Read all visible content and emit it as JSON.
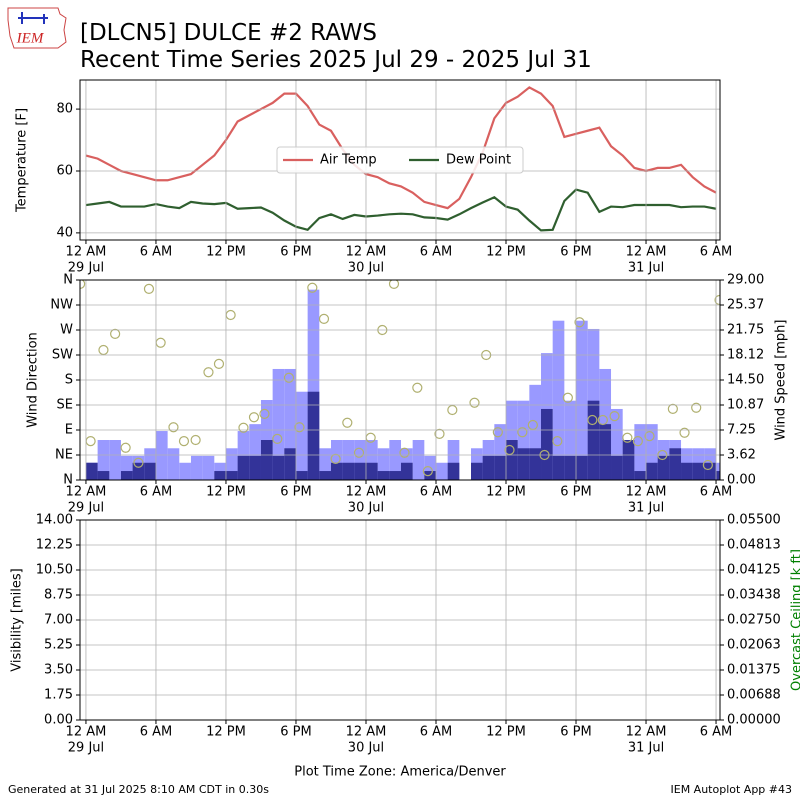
{
  "title": [
    "[DLCN5] DULCE #2 RAWS",
    "Recent Time Series 2025 Jul 29 - 2025 Jul 31"
  ],
  "logo": "IEM",
  "footer_left": "Generated at 31 Jul 2025 8:10 AM CDT in 0.30s",
  "footer_right": "IEM Autoplot App #43",
  "chart_data": [
    {
      "type": "line",
      "ylabel": "Temperature [F]",
      "grid": true,
      "legend": "center",
      "xlim": [
        -0.51,
        54.34
      ],
      "xticks": [
        {
          "value": 0,
          "label": "12 AM"
        },
        {
          "value": 6,
          "label": "6 AM"
        },
        {
          "value": 12,
          "label": "12 PM"
        },
        {
          "value": 18,
          "label": "6 PM"
        },
        {
          "value": 24,
          "label": "12 AM"
        },
        {
          "value": 30,
          "label": "6 AM"
        },
        {
          "value": 36,
          "label": "12 PM"
        },
        {
          "value": 42,
          "label": "6 PM"
        },
        {
          "value": 48,
          "label": "12 AM"
        },
        {
          "value": 54,
          "label": "6 AM"
        }
      ],
      "xdates": [
        {
          "value": 0,
          "label": "29 Jul"
        },
        {
          "value": 24,
          "label": "30 Jul"
        },
        {
          "value": 48,
          "label": "31 Jul"
        }
      ],
      "ylim": [
        37.7,
        89.4
      ],
      "yticks": [
        40,
        60,
        80
      ],
      "x": [
        0,
        1,
        2,
        3,
        4,
        5,
        6,
        7,
        8,
        9,
        10,
        11,
        12,
        13,
        14,
        15,
        16,
        17,
        18,
        19,
        20,
        21,
        22,
        23,
        24,
        25,
        26,
        27,
        28,
        29,
        30,
        31,
        32,
        33,
        34,
        35,
        36,
        37,
        38,
        39,
        40,
        41,
        42,
        43,
        44,
        45,
        46,
        47,
        48,
        49,
        50,
        51,
        52,
        53,
        54
      ],
      "series": [
        {
          "name": "Air Temp",
          "color": "#d9605f",
          "values": [
            65,
            64,
            62,
            60,
            59,
            58,
            57,
            57,
            58,
            59,
            62,
            65,
            70,
            76,
            78,
            80,
            82,
            85,
            85,
            81,
            75,
            73,
            67,
            62,
            59,
            58,
            56,
            55,
            53,
            50,
            49,
            48,
            51,
            58,
            66,
            77,
            82,
            84,
            87,
            85,
            81,
            71,
            72,
            73,
            74,
            68,
            65,
            61,
            60,
            61,
            61,
            62,
            58,
            55,
            53
          ]
        },
        {
          "name": "Dew Point",
          "color": "#2f5f2f",
          "values": [
            49,
            49.5,
            50,
            48.5,
            48.5,
            48.5,
            49.3,
            48.5,
            48,
            50,
            49.5,
            49.3,
            49.7,
            47.8,
            48,
            48.2,
            46.5,
            44,
            42,
            41,
            44.8,
            46,
            44.5,
            45.8,
            45.3,
            45.6,
            46,
            46.2,
            46,
            45,
            44.8,
            44.3,
            46,
            48,
            49.8,
            51.5,
            48.5,
            47.5,
            44,
            40.8,
            41,
            50.3,
            54,
            53,
            46.8,
            48.5,
            48.3,
            49,
            49,
            49,
            49,
            48.3,
            48.5,
            48.5,
            47.8
          ]
        }
      ]
    },
    {
      "type": "bar",
      "ylabel": "Wind Direction",
      "y2label": "Wind Speed [mph]",
      "grid": true,
      "xlim": [
        -0.51,
        54.34
      ],
      "xticks": [
        {
          "value": 0,
          "label": "12 AM"
        },
        {
          "value": 6,
          "label": "6 AM"
        },
        {
          "value": 12,
          "label": "12 PM"
        },
        {
          "value": 18,
          "label": "6 PM"
        },
        {
          "value": 24,
          "label": "12 AM"
        },
        {
          "value": 30,
          "label": "6 AM"
        },
        {
          "value": 36,
          "label": "12 PM"
        },
        {
          "value": 42,
          "label": "6 PM"
        },
        {
          "value": 48,
          "label": "12 AM"
        },
        {
          "value": 54,
          "label": "6 AM"
        }
      ],
      "xdates": [
        {
          "value": 0,
          "label": "29 Jul"
        },
        {
          "value": 24,
          "label": "30 Jul"
        },
        {
          "value": 48,
          "label": "31 Jul"
        }
      ],
      "ylim": [
        0,
        360
      ],
      "yticks": [
        {
          "value": 0,
          "label": "N"
        },
        {
          "value": 45,
          "label": "NE"
        },
        {
          "value": 90,
          "label": "E"
        },
        {
          "value": 135,
          "label": "SE"
        },
        {
          "value": 180,
          "label": "S"
        },
        {
          "value": 225,
          "label": "SW"
        },
        {
          "value": 270,
          "label": "W"
        },
        {
          "value": 315,
          "label": "NW"
        },
        {
          "value": 360,
          "label": "N"
        }
      ],
      "y2lim": [
        0,
        29
      ],
      "y2ticks": [
        {
          "value": 0,
          "label": "0.00"
        },
        {
          "value": 3.625,
          "label": "3.62"
        },
        {
          "value": 7.25,
          "label": "7.25"
        },
        {
          "value": 10.875,
          "label": "10.87"
        },
        {
          "value": 14.5,
          "label": "14.50"
        },
        {
          "value": 18.125,
          "label": "18.12"
        },
        {
          "value": 21.75,
          "label": "21.75"
        },
        {
          "value": 25.375,
          "label": "25.37"
        },
        {
          "value": 29,
          "label": "29.00"
        }
      ],
      "x": [
        0,
        1,
        2,
        3,
        4,
        5,
        6,
        7,
        8,
        9,
        10,
        11,
        12,
        13,
        14,
        15,
        16,
        17,
        18,
        19,
        20,
        21,
        22,
        23,
        24,
        25,
        26,
        27,
        28,
        29,
        30,
        31,
        32,
        33,
        34,
        35,
        36,
        37,
        38,
        39,
        40,
        41,
        42,
        43,
        44,
        45,
        46,
        47,
        48,
        49,
        50,
        51,
        52,
        53,
        54
      ],
      "series": [
        {
          "color": "#9999ff",
          "axis": "y2",
          "values": [
            2.5,
            5.8,
            5.8,
            3.5,
            3.5,
            4.6,
            7.1,
            4.6,
            2.5,
            3.5,
            3.5,
            2.5,
            4.6,
            7.1,
            8.1,
            11.6,
            16.1,
            16.1,
            12.8,
            27.6,
            4.6,
            5.8,
            5.8,
            5.8,
            5.8,
            4.6,
            5.8,
            4.6,
            5.8,
            3.5,
            2.5,
            5.8,
            0,
            4.6,
            5.8,
            8.1,
            11.5,
            11.5,
            13.8,
            18.4,
            23.1,
            11.5,
            23.1,
            21.9,
            16.1,
            10.3,
            5.8,
            8.1,
            8.1,
            5.8,
            5.8,
            4.6,
            4.6,
            4.6,
            2.5
          ]
        },
        {
          "color": "#333399",
          "axis": "y2",
          "values": [
            2.5,
            1.3,
            0,
            1.3,
            2.5,
            2.5,
            0,
            0,
            0,
            0,
            0,
            1.3,
            1.3,
            3.5,
            3.5,
            5.8,
            3.5,
            4.6,
            1.3,
            12.8,
            1.3,
            2.5,
            2.5,
            2.5,
            2.5,
            1.3,
            1.3,
            2.5,
            0,
            1.3,
            0,
            2.5,
            0,
            2.5,
            3.5,
            3.5,
            5.8,
            4.6,
            4.6,
            10.3,
            3.5,
            3.5,
            3.5,
            11.5,
            8.1,
            3.5,
            5.8,
            1.3,
            2.5,
            3.5,
            4.6,
            2.5,
            2.5,
            2.5,
            1.3
          ]
        }
      ],
      "scatter": {
        "color": "#b0b070",
        "x": [
          -0.5,
          0.4,
          1.5,
          2.5,
          3.4,
          4.5,
          5.4,
          6.4,
          7.5,
          8.4,
          9.4,
          10.5,
          11.4,
          12.4,
          13.5,
          14.4,
          15.3,
          16.4,
          17.4,
          18.3,
          19.4,
          20.4,
          21.4,
          22.4,
          23.4,
          24.4,
          25.4,
          26.4,
          27.3,
          28.4,
          29.3,
          30.3,
          31.4,
          33.3,
          34.3,
          35.3,
          36.3,
          37.4,
          38.3,
          39.3,
          40.4,
          41.3,
          42.3,
          43.4,
          44.3,
          45.3,
          46.4,
          47.3,
          48.3,
          49.4,
          50.3,
          51.3,
          52.3,
          53.3,
          54.3
        ],
        "values": [
          353,
          70,
          234,
          263,
          58,
          31,
          344,
          247,
          95,
          70,
          72,
          194,
          209,
          297,
          94,
          113,
          119,
          74,
          184,
          95,
          346,
          290,
          38,
          103,
          49,
          76,
          270,
          353,
          49,
          166,
          16,
          83,
          126,
          139,
          225,
          86,
          54,
          86,
          99,
          45,
          70,
          148,
          284,
          108,
          108,
          115,
          76,
          70,
          79,
          45,
          128,
          85,
          130,
          27,
          324
        ]
      }
    },
    {
      "type": "line",
      "ylabel": "Visibility [miles]",
      "y2label": "Overcast Ceiling [k ft]",
      "y2label_color": "#008000",
      "xlabel": "Plot Time Zone: America/Denver",
      "grid": true,
      "xlim": [
        -0.51,
        54.34
      ],
      "xticks": [
        {
          "value": 0,
          "label": "12 AM"
        },
        {
          "value": 6,
          "label": "6 AM"
        },
        {
          "value": 12,
          "label": "12 PM"
        },
        {
          "value": 18,
          "label": "6 PM"
        },
        {
          "value": 24,
          "label": "12 AM"
        },
        {
          "value": 30,
          "label": "6 AM"
        },
        {
          "value": 36,
          "label": "12 PM"
        },
        {
          "value": 42,
          "label": "6 PM"
        },
        {
          "value": 48,
          "label": "12 AM"
        },
        {
          "value": 54,
          "label": "6 AM"
        }
      ],
      "xdates": [
        {
          "value": 0,
          "label": "29 Jul"
        },
        {
          "value": 24,
          "label": "30 Jul"
        },
        {
          "value": 48,
          "label": "31 Jul"
        }
      ],
      "ylim": [
        0,
        14
      ],
      "yticks": [
        {
          "value": 0,
          "label": "0.00"
        },
        {
          "value": 1.75,
          "label": "1.75"
        },
        {
          "value": 3.5,
          "label": "3.50"
        },
        {
          "value": 5.25,
          "label": "5.25"
        },
        {
          "value": 7,
          "label": "7.00"
        },
        {
          "value": 8.75,
          "label": "8.75"
        },
        {
          "value": 10.5,
          "label": "10.50"
        },
        {
          "value": 12.25,
          "label": "12.25"
        },
        {
          "value": 14,
          "label": "14.00"
        }
      ],
      "y2lim": [
        0,
        0.055
      ],
      "y2ticks": [
        {
          "value": 0,
          "label": "0.00000"
        },
        {
          "value": 0.006875,
          "label": "0.00688"
        },
        {
          "value": 0.01375,
          "label": "0.01375"
        },
        {
          "value": 0.020625,
          "label": "0.02063"
        },
        {
          "value": 0.0275,
          "label": "0.02750"
        },
        {
          "value": 0.034375,
          "label": "0.03438"
        },
        {
          "value": 0.04125,
          "label": "0.04125"
        },
        {
          "value": 0.048125,
          "label": "0.04813"
        },
        {
          "value": 0.055,
          "label": "0.05500"
        }
      ],
      "series": []
    }
  ]
}
